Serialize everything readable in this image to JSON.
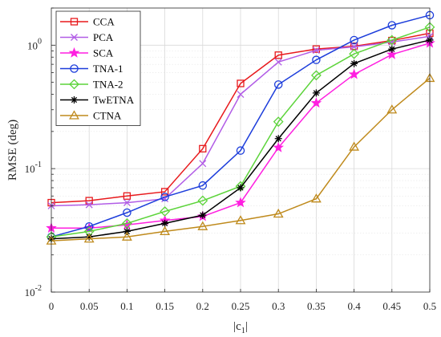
{
  "chart_data": {
    "type": "line",
    "title": "",
    "xlabel": "|c_1|",
    "xlabel_main": "|c",
    "xlabel_sub": "1",
    "xlabel_end": "|",
    "ylabel": "RMSE (deg)",
    "yscale": "log",
    "ylim": [
      0.01,
      2
    ],
    "xlim": [
      0,
      0.5
    ],
    "grid": true,
    "legend_position": "top-left",
    "x": [
      0,
      0.05,
      0.1,
      0.15,
      0.2,
      0.25,
      0.3,
      0.35,
      0.4,
      0.45,
      0.5
    ],
    "x_tick_labels": [
      "0",
      "0.05",
      "0.1",
      "0.15",
      "0.2",
      "0.25",
      "0.3",
      "0.35",
      "0.4",
      "0.45",
      "0.5"
    ],
    "y_ticks": [
      {
        "value": 0.01,
        "base": "10",
        "exp": "-2"
      },
      {
        "value": 0.1,
        "base": "10",
        "exp": "-1"
      },
      {
        "value": 1,
        "base": "10",
        "exp": "0"
      }
    ],
    "series": [
      {
        "name": "CCA",
        "color": "#e8191c",
        "marker": "square",
        "values": [
          0.053,
          0.055,
          0.06,
          0.065,
          0.145,
          0.49,
          0.83,
          0.93,
          0.98,
          1.09,
          1.25
        ]
      },
      {
        "name": "PCA",
        "color": "#b15ce6",
        "marker": "x",
        "values": [
          0.05,
          0.051,
          0.053,
          0.057,
          0.11,
          0.4,
          0.73,
          0.91,
          0.97,
          1.06,
          1.18
        ]
      },
      {
        "name": "SCA",
        "color": "#ff1fe0",
        "marker": "star",
        "values": [
          0.033,
          0.033,
          0.035,
          0.038,
          0.041,
          0.053,
          0.148,
          0.34,
          0.58,
          0.84,
          1.04
        ]
      },
      {
        "name": "TNA-1",
        "color": "#1c3ddb",
        "marker": "circle",
        "values": [
          0.028,
          0.034,
          0.044,
          0.059,
          0.073,
          0.14,
          0.48,
          0.76,
          1.1,
          1.45,
          1.75
        ]
      },
      {
        "name": "TNA-2",
        "color": "#5cd43a",
        "marker": "diamond",
        "values": [
          0.028,
          0.031,
          0.036,
          0.045,
          0.055,
          0.072,
          0.24,
          0.57,
          0.85,
          1.1,
          1.4
        ]
      },
      {
        "name": "TwETNA",
        "color": "#000000",
        "marker": "asterisk",
        "values": [
          0.027,
          0.028,
          0.031,
          0.036,
          0.042,
          0.07,
          0.175,
          0.41,
          0.71,
          0.93,
          1.1
        ]
      },
      {
        "name": "CTNA",
        "color": "#bf8a1c",
        "marker": "triangle",
        "values": [
          0.026,
          0.027,
          0.028,
          0.031,
          0.034,
          0.038,
          0.043,
          0.057,
          0.15,
          0.3,
          0.54
        ]
      }
    ]
  }
}
